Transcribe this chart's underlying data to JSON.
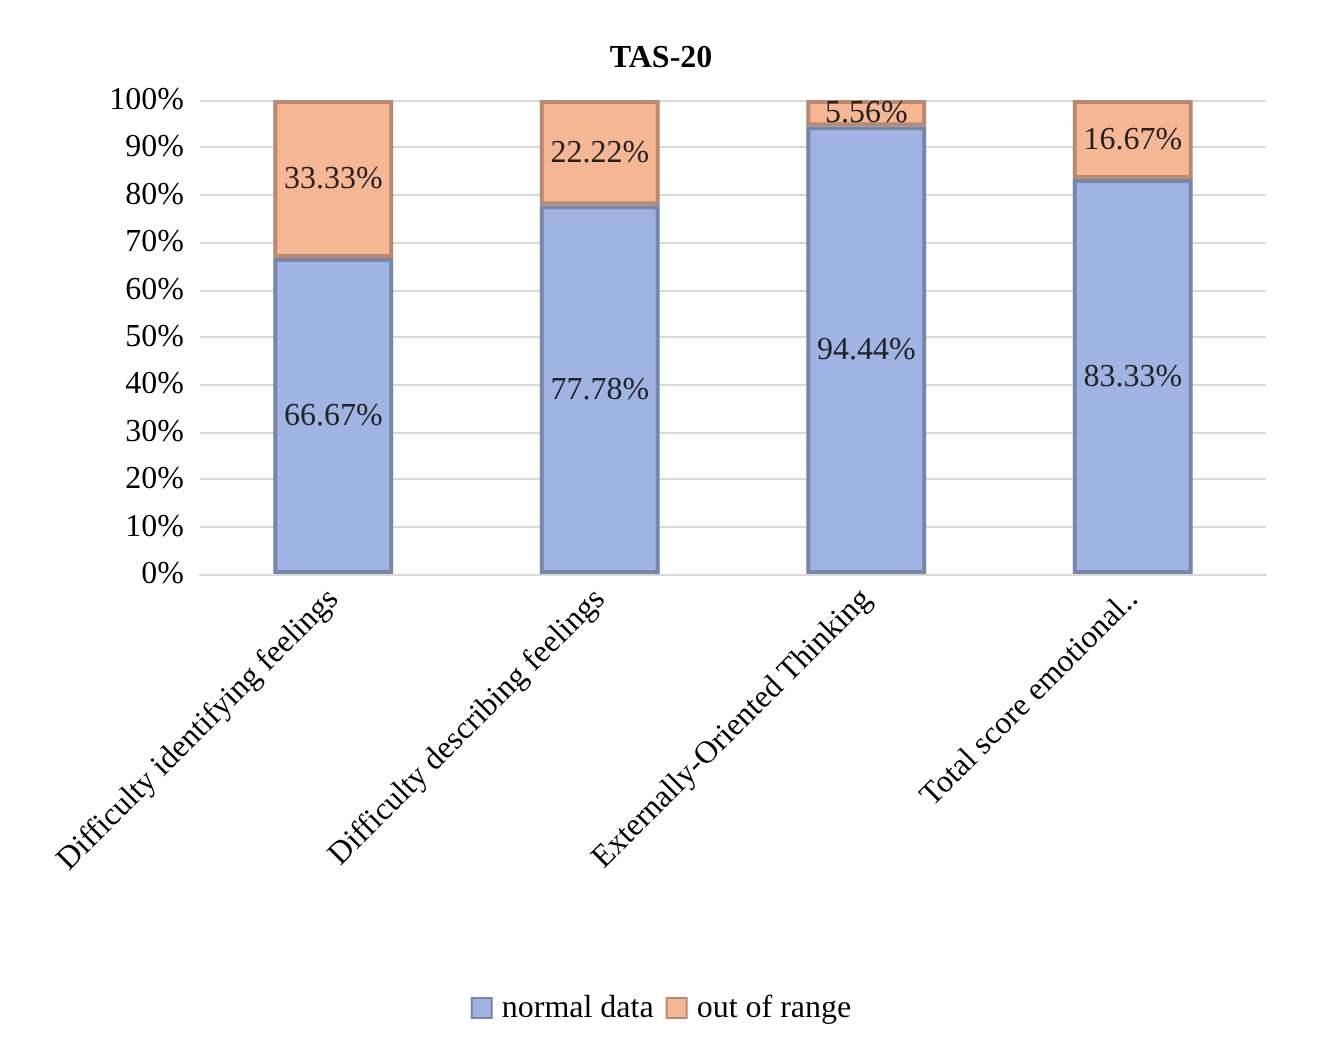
{
  "chart_data": {
    "type": "bar",
    "title": "TAS-20",
    "stacked": true,
    "categories": [
      "Difficulty identifying feelings",
      "Difficulty describing feelings",
      "Externally-Oriented Thinking",
      "Total score emotional.."
    ],
    "series": [
      {
        "name": "normal data",
        "color": "#9fb4e2",
        "values": [
          66.67,
          77.78,
          94.44,
          83.33
        ],
        "value_labels": [
          "66.67%",
          "77.78%",
          "94.44%",
          "83.33%"
        ]
      },
      {
        "name": "out of range",
        "color": "#f6b894",
        "values": [
          33.33,
          22.22,
          5.56,
          16.67
        ],
        "value_labels": [
          "33.33%",
          "22.22%",
          "5.56%",
          "16.67%"
        ]
      }
    ],
    "ylim": [
      0,
      100
    ],
    "yticks": [
      {
        "value": 0,
        "label": "0%"
      },
      {
        "value": 10,
        "label": "10%"
      },
      {
        "value": 20,
        "label": "20%"
      },
      {
        "value": 30,
        "label": "30%"
      },
      {
        "value": 40,
        "label": "40%"
      },
      {
        "value": 50,
        "label": "50%"
      },
      {
        "value": 60,
        "label": "60%"
      },
      {
        "value": 70,
        "label": "70%"
      },
      {
        "value": 80,
        "label": "80%"
      },
      {
        "value": 90,
        "label": "90%"
      },
      {
        "value": 100,
        "label": "100%"
      }
    ],
    "grid": "y",
    "legend": "bottom"
  }
}
